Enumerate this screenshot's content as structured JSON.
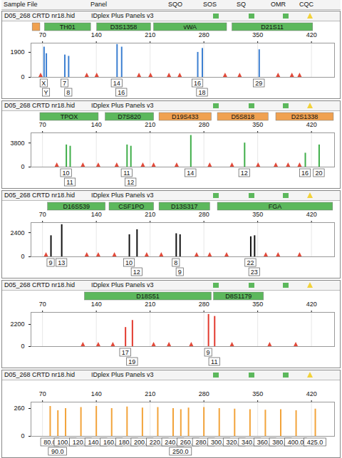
{
  "header": {
    "columns": [
      "Sample File",
      "Panel",
      "SQO",
      "SOS",
      "SQ",
      "OMR",
      "CQC"
    ]
  },
  "chart_data": [
    {
      "type": "bar",
      "title": "D05_268 CRTD nr18.hid",
      "subtitle": "IDplex Plus Panels v3",
      "color": "#3c7fd1",
      "xlim": [
        55,
        450
      ],
      "xticks": [
        70,
        140,
        210,
        280,
        350,
        420
      ],
      "ylim": [
        0,
        2600
      ],
      "yticks": [
        0,
        1900
      ],
      "grid": true,
      "loci": [
        {
          "name": null,
          "range": [
            57,
            67
          ],
          "color": "#f0a150"
        },
        {
          "name": "TH01",
          "range": [
            73,
            133
          ],
          "color": "#5cb85c"
        },
        {
          "name": "D3S1358",
          "range": [
            141,
            211
          ],
          "color": "#5cb85c"
        },
        {
          "name": "vWA",
          "range": [
            215,
            310
          ],
          "color": "#5cb85c"
        },
        {
          "name": "D21S11",
          "range": [
            317,
            422
          ],
          "color": "#5cb85c"
        }
      ],
      "peaks": {
        "x": [
          72,
          75,
          99,
          104,
          167,
          173,
          272,
          278,
          352
        ],
        "values": [
          2300,
          1800,
          1700,
          1600,
          2500,
          2300,
          1900,
          2200,
          2100
        ],
        "labels": [
          "X",
          "Y",
          "7",
          "8",
          "14",
          "16",
          "16",
          "18",
          "29"
        ]
      },
      "bin_markers": [
        68,
        128,
        141,
        196,
        211,
        235,
        249,
        308,
        327,
        377,
        395,
        405
      ]
    },
    {
      "type": "bar",
      "title": "D05_268 CRTD nr18.hid",
      "subtitle": "IDplex Plus Panels v3",
      "color": "#3fae49",
      "xlim": [
        55,
        450
      ],
      "xticks": [
        70,
        140,
        210,
        280,
        350,
        420
      ],
      "ylim": [
        0,
        5400
      ],
      "yticks": [
        0,
        3800
      ],
      "grid": true,
      "loci": [
        {
          "name": "TPOX",
          "range": [
            67,
            143
          ],
          "color": "#5cb85c"
        },
        {
          "name": "D7S820",
          "range": [
            152,
            215
          ],
          "color": "#5cb85c"
        },
        {
          "name": "D19S433",
          "range": [
            222,
            290
          ],
          "color": "#f0a150"
        },
        {
          "name": "D5S818",
          "range": [
            298,
            364
          ],
          "color": "#f0a150"
        },
        {
          "name": "D2S1338",
          "range": [
            374,
            449
          ],
          "color": "#f0a150"
        }
      ],
      "peaks": {
        "x": [
          101,
          106,
          180,
          185,
          263,
          333,
          412,
          430
        ],
        "values": [
          3500,
          3300,
          3500,
          3300,
          5000,
          3800,
          2200,
          3500
        ],
        "labels": [
          "10",
          "11",
          "11",
          "12",
          "14",
          "12",
          "16",
          "20"
        ]
      },
      "bin_markers": [
        89,
        123,
        143,
        167,
        201,
        215,
        245,
        288,
        317,
        351,
        374,
        390,
        405
      ]
    },
    {
      "type": "bar",
      "title": "D05_268 CRTD nr18.hid",
      "subtitle": "IDplex Plus Panels v3",
      "color": "#111111",
      "xlim": [
        55,
        450
      ],
      "xticks": [
        70,
        140,
        210,
        280,
        350,
        420
      ],
      "ylim": [
        0,
        3400
      ],
      "yticks": [
        0,
        2400
      ],
      "grid": true,
      "loci": [
        {
          "name": "D16S539",
          "range": [
            77,
            152
          ],
          "color": "#5cb85c"
        },
        {
          "name": "CSF1PO",
          "range": [
            157,
            215
          ],
          "color": "#5cb85c"
        },
        {
          "name": "D13S317",
          "range": [
            222,
            288
          ],
          "color": "#5cb85c"
        },
        {
          "name": "FGA",
          "range": [
            298,
            448
          ],
          "color": "#5cb85c"
        }
      ],
      "peaks": {
        "x": [
          81,
          95,
          183,
          193,
          244,
          249,
          341,
          346
        ],
        "values": [
          2100,
          3200,
          2200,
          2700,
          2300,
          2200,
          2000,
          2100
        ],
        "labels": [
          "9",
          "13",
          "10",
          "12",
          "8",
          "9",
          "22",
          "23"
        ]
      },
      "bin_markers": [
        75,
        128,
        143,
        164,
        206,
        225,
        271,
        288,
        310,
        361,
        377,
        405
      ]
    },
    {
      "type": "bar",
      "title": "D05_268 CRTD nr18.hid",
      "subtitle": "IDplex Plus Panels v3",
      "color": "#e23a2e",
      "xlim": [
        55,
        450
      ],
      "xticks": [
        70,
        140,
        210,
        280,
        350,
        420
      ],
      "ylim": [
        0,
        3400
      ],
      "yticks": [
        0,
        2200
      ],
      "grid": true,
      "loci": [
        {
          "name": "D18S51",
          "range": [
            125,
            290
          ],
          "color": "#5cb85c"
        },
        {
          "name": "D8S1179",
          "range": [
            293,
            358
          ],
          "color": "#5cb85c"
        }
      ],
      "peaks": {
        "x": [
          178,
          187,
          286,
          294
        ],
        "values": [
          1900,
          2600,
          3200,
          3000
        ],
        "labels": [
          "17",
          "19",
          "9",
          "11"
        ]
      },
      "bin_markers": [
        123,
        143,
        162,
        215,
        235,
        264,
        317,
        366,
        400
      ]
    },
    {
      "type": "bar",
      "title": "D05_268 CRTD nr18.hid",
      "subtitle": "IDplex Plus Panels v3",
      "color": "#f2a33a",
      "xlim": [
        55,
        450
      ],
      "xticks": [
        70,
        140,
        210,
        280,
        350,
        420
      ],
      "ylim": [
        0,
        320
      ],
      "yticks": [
        0,
        260
      ],
      "grid": true,
      "loci": [],
      "peaks": {
        "x": [
          80,
          90,
          100,
          120,
          140,
          160,
          180,
          200,
          220,
          240,
          250,
          260,
          280,
          300,
          320,
          340,
          360,
          380,
          400,
          425
        ],
        "values": [
          280,
          240,
          260,
          270,
          280,
          260,
          275,
          265,
          270,
          260,
          250,
          265,
          270,
          260,
          255,
          250,
          245,
          250,
          240,
          255
        ],
        "labels": [
          "80.0",
          "90.0",
          "100.0",
          "120.0",
          "140.0",
          "160.0",
          "180.0",
          "200.0",
          "220.0",
          "240.0",
          "250.0",
          "260.0",
          "280.0",
          "300.0",
          "320.0",
          "340.0",
          "360.0",
          "380.0",
          "400.0",
          "425.0"
        ]
      }
    }
  ]
}
